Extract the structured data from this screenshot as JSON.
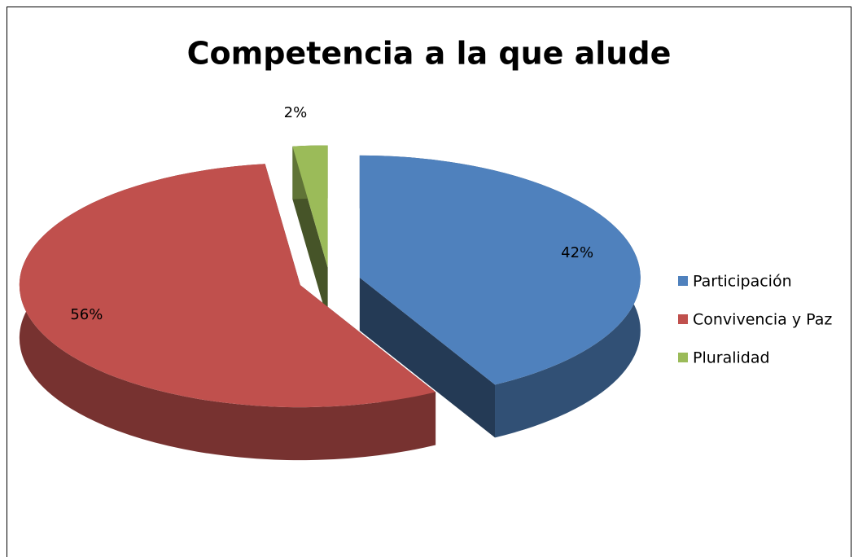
{
  "chart_data": {
    "type": "pie",
    "title": "Competencia a la que alude",
    "categories": [
      "Participación",
      "Convivencia y Paz",
      "Pluralidad"
    ],
    "values": [
      42,
      56,
      2
    ],
    "value_labels": [
      "42%",
      "56%",
      "2%"
    ],
    "colors": [
      "#4f81bd",
      "#c0504d",
      "#9bbb59"
    ],
    "legend": "right"
  }
}
